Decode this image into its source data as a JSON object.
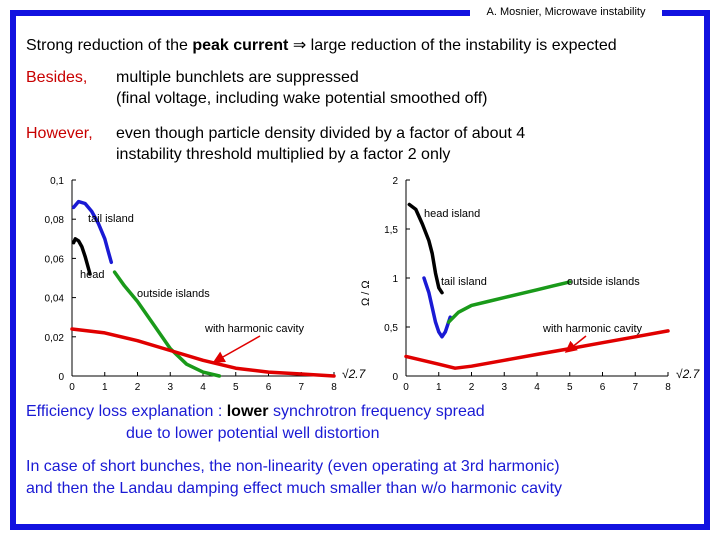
{
  "header": {
    "author": "A. Mosnier, Microwave instability"
  },
  "lines": {
    "l1_a": "Strong reduction of the ",
    "l1_b": "peak current",
    "l1_c": " ⇒ large reduction of the instability is expected",
    "besides_label": "Besides,",
    "besides_1": "multiple bunchlets are suppressed",
    "besides_2": "(final voltage, including wake potential smoothed off)",
    "however_label": "However,",
    "however_1": "even though particle density divided by a factor of about 4",
    "however_2": "instability threshold multiplied by a factor 2 only",
    "eff_a": "Efficiency loss explanation",
    "eff_b": " : ",
    "eff_c": "lower",
    "eff_d": " synchrotron frequency spread",
    "eff_2": "due to lower potential well distortion",
    "short_1": "In case of short bunches, the non-linearity (even operating at 3rd harmonic)",
    "short_2": "and then the Landau damping effect much smaller than w/o harmonic cavity"
  },
  "colors": {
    "border": "#1212e0",
    "tail": "#1a1ad4",
    "outside": "#1a9a1a",
    "harmonic": "#e00000"
  },
  "chart_data": [
    {
      "type": "line",
      "xlim": [
        0,
        8
      ],
      "ylim": [
        0,
        0.1
      ],
      "xticks": [
        "0",
        "1",
        "2",
        "3",
        "4",
        "5",
        "6",
        "7",
        "8"
      ],
      "yticks": [
        "0",
        "0,02",
        "0,04",
        "0,06",
        "0,08",
        "0,1"
      ],
      "xlabel": "√2.7",
      "annotations": [
        "tail island",
        "head",
        "outside islands",
        "with harmonic cavity"
      ],
      "series": [
        {
          "name": "head",
          "color": "#000000",
          "x": [
            0.05,
            0.1,
            0.2,
            0.3,
            0.4,
            0.5,
            0.55
          ],
          "y": [
            0.068,
            0.07,
            0.069,
            0.066,
            0.061,
            0.055,
            0.052
          ]
        },
        {
          "name": "tail island",
          "color": "#1a1ad4",
          "x": [
            0.05,
            0.2,
            0.4,
            0.6,
            0.8,
            1.0,
            1.1,
            1.2
          ],
          "y": [
            0.086,
            0.089,
            0.088,
            0.084,
            0.078,
            0.07,
            0.064,
            0.058
          ]
        },
        {
          "name": "outside islands",
          "color": "#1a9a1a",
          "x": [
            1.3,
            1.6,
            2.0,
            2.5,
            3.0,
            3.5,
            4.0,
            4.5
          ],
          "y": [
            0.053,
            0.046,
            0.038,
            0.026,
            0.014,
            0.006,
            0.002,
            0.0
          ]
        },
        {
          "name": "with harmonic cavity",
          "color": "#e00000",
          "x": [
            0,
            1,
            2,
            3,
            4,
            5,
            6,
            7,
            8
          ],
          "y": [
            0.024,
            0.022,
            0.018,
            0.013,
            0.008,
            0.004,
            0.002,
            0.001,
            0.0
          ]
        }
      ]
    },
    {
      "type": "line",
      "xlim": [
        0,
        8
      ],
      "ylim": [
        0,
        2
      ],
      "xticks": [
        "0",
        "1",
        "2",
        "3",
        "4",
        "5",
        "6",
        "7",
        "8"
      ],
      "yticks": [
        "0",
        "0,5",
        "1",
        "1,5",
        "2"
      ],
      "xlabel": "√2.7",
      "ylabel": "Ω / Ω",
      "annotations": [
        "head island",
        "tail island",
        "outside islands",
        "with harmonic cavity"
      ],
      "series": [
        {
          "name": "head island",
          "color": "#000000",
          "x": [
            0.1,
            0.3,
            0.5,
            0.7,
            0.8,
            0.9,
            1.0,
            1.1
          ],
          "y": [
            1.75,
            1.7,
            1.55,
            1.38,
            1.25,
            1.05,
            0.9,
            0.85
          ]
        },
        {
          "name": "tail island",
          "color": "#1a1ad4",
          "x": [
            0.55,
            0.6,
            0.7,
            0.8,
            0.9,
            1.0,
            1.1,
            1.2,
            1.3,
            1.35
          ],
          "y": [
            1.0,
            0.95,
            0.85,
            0.7,
            0.55,
            0.45,
            0.4,
            0.45,
            0.55,
            0.6
          ]
        },
        {
          "name": "outside islands",
          "color": "#1a9a1a",
          "x": [
            1.3,
            1.6,
            2.0,
            2.5,
            3.0,
            3.5,
            4.0,
            4.5,
            5.0
          ],
          "y": [
            0.55,
            0.65,
            0.72,
            0.76,
            0.8,
            0.84,
            0.88,
            0.92,
            0.96
          ]
        },
        {
          "name": "with harmonic cavity",
          "color": "#e00000",
          "x": [
            0,
            0.5,
            1.0,
            1.5,
            2,
            3,
            4,
            5,
            6,
            7,
            8
          ],
          "y": [
            0.2,
            0.16,
            0.12,
            0.08,
            0.1,
            0.16,
            0.22,
            0.28,
            0.34,
            0.4,
            0.46
          ]
        }
      ]
    }
  ]
}
